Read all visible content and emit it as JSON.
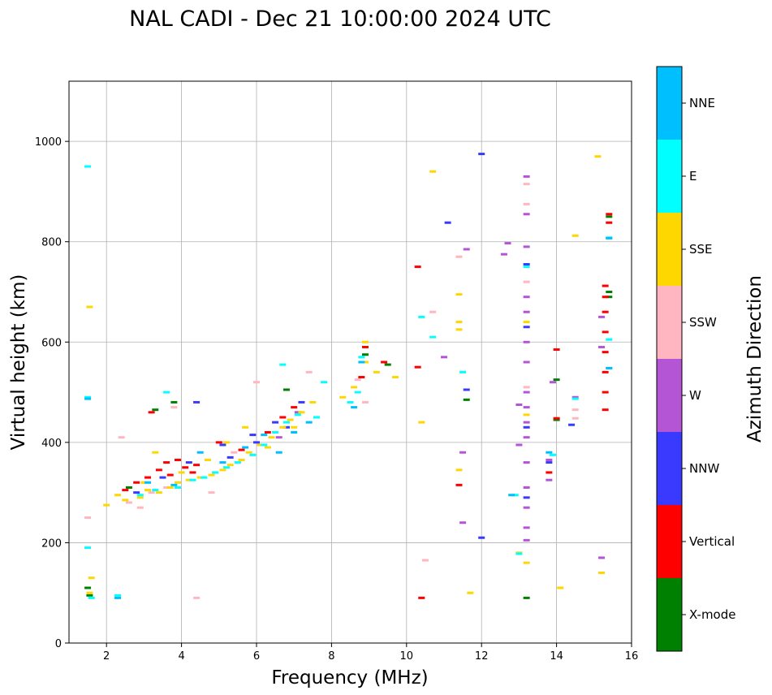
{
  "chart_data": {
    "type": "scatter",
    "title": "NAL CADI - Dec 21 10:00:00 2024 UTC",
    "xlabel": "Frequency (MHz)",
    "ylabel": "Virtual height (km)",
    "xlim": [
      1,
      16
    ],
    "ylim": [
      0,
      1120
    ],
    "xticks": [
      2,
      4,
      6,
      8,
      10,
      12,
      14,
      16
    ],
    "yticks": [
      0,
      200,
      400,
      600,
      800,
      1000
    ],
    "grid": true,
    "colorbar": {
      "label": "Azimuth Direction",
      "categories": [
        "X-mode",
        "Vertical",
        "NNW",
        "W",
        "SSW",
        "SSE",
        "E",
        "NNE"
      ],
      "colors": [
        "#008000",
        "#ff0000",
        "#3a3aff",
        "#b455d6",
        "#ffb6c1",
        "#ffd700",
        "#00ffff",
        "#00bfff"
      ]
    },
    "series": [
      {
        "name": "X-mode",
        "points": [
          [
            1.55,
            95
          ],
          [
            3.3,
            465
          ],
          [
            3.8,
            480
          ],
          [
            6.8,
            505
          ],
          [
            8.9,
            575
          ],
          [
            9.5,
            555
          ],
          [
            11.6,
            485
          ],
          [
            13.2,
            90
          ],
          [
            14.0,
            445
          ],
          [
            14.0,
            525
          ],
          [
            15.4,
            690
          ],
          [
            15.4,
            700
          ],
          [
            15.4,
            850
          ],
          [
            1.5,
            110
          ],
          [
            2.6,
            310
          ]
        ]
      },
      {
        "name": "Vertical",
        "points": [
          [
            2.5,
            305
          ],
          [
            3.2,
            460
          ],
          [
            3.6,
            360
          ],
          [
            3.9,
            365
          ],
          [
            4.1,
            350
          ],
          [
            3.4,
            345
          ],
          [
            3.1,
            330
          ],
          [
            2.8,
            320
          ],
          [
            4.4,
            355
          ],
          [
            5.0,
            400
          ],
          [
            5.6,
            385
          ],
          [
            6.3,
            420
          ],
          [
            6.7,
            450
          ],
          [
            7.0,
            470
          ],
          [
            8.8,
            530
          ],
          [
            8.9,
            590
          ],
          [
            9.4,
            560
          ],
          [
            10.3,
            550
          ],
          [
            10.3,
            750
          ],
          [
            10.4,
            90
          ],
          [
            11.4,
            315
          ],
          [
            13.8,
            340
          ],
          [
            14.0,
            585
          ],
          [
            14.0,
            448
          ],
          [
            15.3,
            465
          ],
          [
            15.3,
            500
          ],
          [
            15.3,
            540
          ],
          [
            15.3,
            580
          ],
          [
            15.3,
            620
          ],
          [
            15.3,
            660
          ],
          [
            15.3,
            690
          ],
          [
            15.3,
            712
          ],
          [
            15.4,
            838
          ],
          [
            15.4,
            855
          ],
          [
            3.7,
            335
          ],
          [
            4.3,
            340
          ]
        ]
      },
      {
        "name": "NNW",
        "points": [
          [
            2.8,
            300
          ],
          [
            3.5,
            330
          ],
          [
            4.2,
            360
          ],
          [
            5.3,
            370
          ],
          [
            6.0,
            400
          ],
          [
            6.5,
            440
          ],
          [
            7.2,
            480
          ],
          [
            11.1,
            838
          ],
          [
            11.6,
            505
          ],
          [
            12.0,
            210
          ],
          [
            12.0,
            975
          ],
          [
            13.2,
            290
          ],
          [
            13.2,
            430
          ],
          [
            13.2,
            630
          ],
          [
            13.2,
            755
          ],
          [
            13.8,
            360
          ],
          [
            14.4,
            435
          ],
          [
            4.4,
            480
          ],
          [
            5.1,
            395
          ],
          [
            5.9,
            415
          ],
          [
            6.8,
            430
          ]
        ]
      },
      {
        "name": "W",
        "points": [
          [
            6.6,
            410
          ],
          [
            7.1,
            460
          ],
          [
            11.0,
            570
          ],
          [
            11.5,
            380
          ],
          [
            11.5,
            240
          ],
          [
            11.6,
            785
          ],
          [
            12.6,
            775
          ],
          [
            12.7,
            797
          ],
          [
            13.0,
            395
          ],
          [
            13.0,
            475
          ],
          [
            13.2,
            930
          ],
          [
            13.2,
            855
          ],
          [
            13.2,
            790
          ],
          [
            13.2,
            690
          ],
          [
            13.2,
            660
          ],
          [
            13.2,
            600
          ],
          [
            13.2,
            560
          ],
          [
            13.2,
            500
          ],
          [
            13.2,
            470
          ],
          [
            13.2,
            440
          ],
          [
            13.2,
            410
          ],
          [
            13.2,
            360
          ],
          [
            13.2,
            310
          ],
          [
            13.2,
            270
          ],
          [
            13.2,
            230
          ],
          [
            13.2,
            205
          ],
          [
            13.8,
            325
          ],
          [
            13.8,
            365
          ],
          [
            13.9,
            520
          ],
          [
            14.5,
            490
          ],
          [
            15.2,
            650
          ],
          [
            15.2,
            590
          ],
          [
            15.2,
            170
          ]
        ]
      },
      {
        "name": "SSW",
        "points": [
          [
            1.5,
            250
          ],
          [
            2.4,
            410
          ],
          [
            2.6,
            280
          ],
          [
            2.9,
            270
          ],
          [
            3.2,
            300
          ],
          [
            3.6,
            310
          ],
          [
            3.8,
            470
          ],
          [
            4.4,
            90
          ],
          [
            4.8,
            300
          ],
          [
            5.4,
            380
          ],
          [
            6.0,
            520
          ],
          [
            7.4,
            540
          ],
          [
            8.7,
            525
          ],
          [
            8.9,
            480
          ],
          [
            10.5,
            165
          ],
          [
            10.7,
            660
          ],
          [
            11.4,
            770
          ],
          [
            13.2,
            875
          ],
          [
            13.2,
            915
          ],
          [
            13.2,
            720
          ],
          [
            13.2,
            510
          ],
          [
            14.5,
            465
          ],
          [
            14.5,
            448
          ]
        ]
      },
      {
        "name": "SSE",
        "points": [
          [
            1.55,
            670
          ],
          [
            1.55,
            100
          ],
          [
            1.6,
            130
          ],
          [
            2.0,
            275
          ],
          [
            2.3,
            295
          ],
          [
            2.5,
            285
          ],
          [
            2.9,
            290
          ],
          [
            3.1,
            305
          ],
          [
            3.4,
            300
          ],
          [
            3.7,
            310
          ],
          [
            3.9,
            320
          ],
          [
            4.2,
            325
          ],
          [
            4.5,
            330
          ],
          [
            4.8,
            335
          ],
          [
            5.1,
            345
          ],
          [
            5.3,
            355
          ],
          [
            5.6,
            365
          ],
          [
            5.8,
            380
          ],
          [
            6.1,
            395
          ],
          [
            6.4,
            410
          ],
          [
            6.7,
            430
          ],
          [
            6.9,
            445
          ],
          [
            7.2,
            460
          ],
          [
            7.5,
            480
          ],
          [
            8.3,
            490
          ],
          [
            8.6,
            510
          ],
          [
            8.9,
            560
          ],
          [
            8.9,
            600
          ],
          [
            9.2,
            540
          ],
          [
            9.7,
            530
          ],
          [
            10.4,
            440
          ],
          [
            10.7,
            940
          ],
          [
            11.4,
            695
          ],
          [
            11.4,
            640
          ],
          [
            11.4,
            625
          ],
          [
            11.4,
            345
          ],
          [
            11.7,
            100
          ],
          [
            13.0,
            180
          ],
          [
            13.2,
            640
          ],
          [
            13.2,
            455
          ],
          [
            13.2,
            160
          ],
          [
            14.1,
            110
          ],
          [
            14.5,
            812
          ],
          [
            15.1,
            970
          ],
          [
            15.2,
            140
          ],
          [
            3.3,
            380
          ],
          [
            4.0,
            340
          ],
          [
            4.7,
            365
          ],
          [
            5.2,
            400
          ],
          [
            5.7,
            430
          ],
          [
            3.0,
            320
          ],
          [
            6.3,
            390
          ],
          [
            7.0,
            430
          ]
        ]
      },
      {
        "name": "E",
        "points": [
          [
            1.5,
            950
          ],
          [
            1.5,
            490
          ],
          [
            1.5,
            190
          ],
          [
            1.6,
            90
          ],
          [
            2.3,
            95
          ],
          [
            2.9,
            295
          ],
          [
            3.3,
            305
          ],
          [
            3.6,
            500
          ],
          [
            3.9,
            310
          ],
          [
            4.3,
            325
          ],
          [
            4.6,
            330
          ],
          [
            4.9,
            340
          ],
          [
            5.2,
            350
          ],
          [
            5.5,
            360
          ],
          [
            5.9,
            375
          ],
          [
            6.2,
            395
          ],
          [
            6.5,
            420
          ],
          [
            6.8,
            440
          ],
          [
            7.1,
            455
          ],
          [
            7.6,
            450
          ],
          [
            8.5,
            480
          ],
          [
            8.7,
            500
          ],
          [
            8.8,
            570
          ],
          [
            10.4,
            650
          ],
          [
            10.7,
            610
          ],
          [
            11.5,
            540
          ],
          [
            12.9,
            295
          ],
          [
            13.0,
            178
          ],
          [
            13.2,
            750
          ],
          [
            13.9,
            375
          ],
          [
            14.5,
            487
          ],
          [
            15.4,
            808
          ],
          [
            15.4,
            548
          ],
          [
            15.4,
            605
          ],
          [
            6.7,
            555
          ],
          [
            7.8,
            520
          ]
        ]
      },
      {
        "name": "NNE",
        "points": [
          [
            1.5,
            487
          ],
          [
            2.3,
            90
          ],
          [
            3.1,
            320
          ],
          [
            3.8,
            315
          ],
          [
            4.5,
            380
          ],
          [
            5.1,
            360
          ],
          [
            5.7,
            390
          ],
          [
            6.2,
            415
          ],
          [
            6.6,
            380
          ],
          [
            7.0,
            420
          ],
          [
            7.4,
            440
          ],
          [
            8.6,
            470
          ],
          [
            8.8,
            560
          ],
          [
            12.8,
            295
          ],
          [
            13.8,
            380
          ],
          [
            15.4,
            807
          ],
          [
            15.4,
            548
          ]
        ]
      }
    ]
  }
}
